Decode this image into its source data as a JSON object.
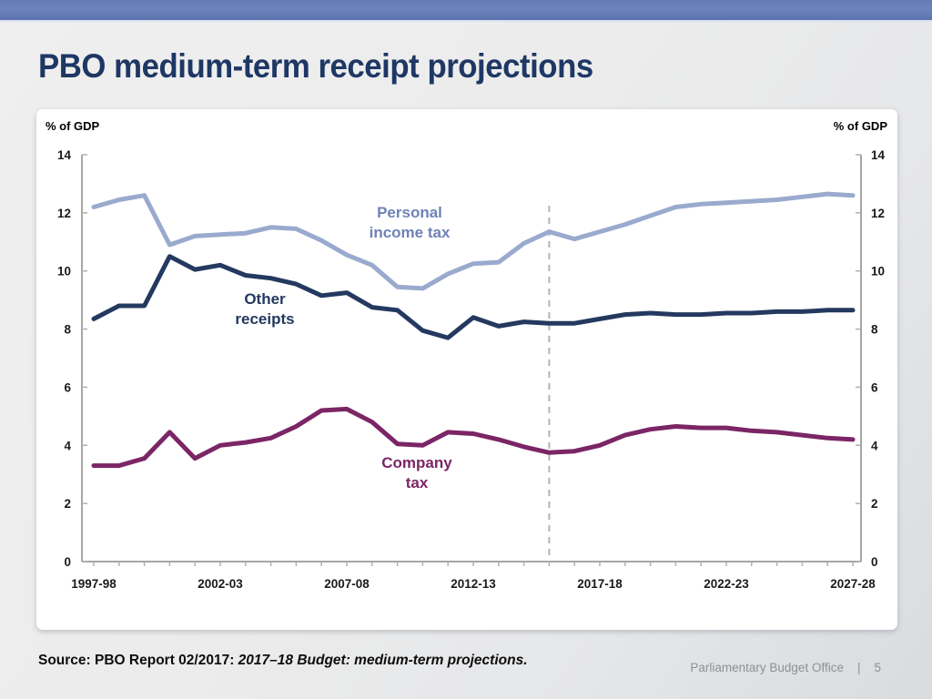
{
  "slide": {
    "title": "PBO medium-term receipt projections",
    "source": {
      "prefix": "Source: PBO Report 02/2017: ",
      "citation": "2017–18 Budget: medium-term projections."
    },
    "footer": {
      "organization": "Parliamentary Budget Office",
      "separator": "|",
      "page_number": "5"
    }
  },
  "chart_data": {
    "type": "line",
    "axis_label_left": "% of GDP",
    "axis_label_right": "% of GDP",
    "ylim": [
      0,
      14
    ],
    "y_ticks": [
      0,
      2,
      4,
      6,
      8,
      10,
      12,
      14
    ],
    "n_points": 31,
    "x_start_label": "1997-98",
    "x_end_label": "2027-28",
    "x_tick_labels": [
      {
        "index": 0,
        "label": "1997-98"
      },
      {
        "index": 5,
        "label": "2002-03"
      },
      {
        "index": 10,
        "label": "2007-08"
      },
      {
        "index": 15,
        "label": "2012-13"
      },
      {
        "index": 20,
        "label": "2017-18"
      },
      {
        "index": 25,
        "label": "2022-23"
      },
      {
        "index": 30,
        "label": "2027-28"
      }
    ],
    "projection_divider_index": 18,
    "grid": false,
    "legend": "inline-series-labels",
    "series": [
      {
        "name": "Personal income tax",
        "color": "#9aaace",
        "label_color": "#6f82b6",
        "values": [
          12.2,
          12.45,
          12.6,
          10.9,
          11.2,
          11.25,
          11.3,
          11.5,
          11.45,
          11.05,
          10.55,
          10.2,
          9.45,
          9.4,
          9.9,
          10.25,
          10.3,
          10.95,
          11.35,
          11.1,
          11.35,
          11.6,
          11.9,
          12.2,
          12.3,
          12.35,
          12.4,
          12.45,
          12.55,
          12.65,
          12.6
        ]
      },
      {
        "name": "Other receipts",
        "color": "#24395f",
        "label_color": "#24395f",
        "values": [
          8.35,
          8.8,
          8.8,
          10.5,
          10.05,
          10.2,
          9.85,
          9.75,
          9.55,
          9.15,
          9.25,
          8.75,
          8.65,
          7.95,
          7.7,
          8.4,
          8.1,
          8.25,
          8.2,
          8.2,
          8.35,
          8.5,
          8.55,
          8.5,
          8.5,
          8.55,
          8.55,
          8.6,
          8.6,
          8.65,
          8.65
        ]
      },
      {
        "name": "Company tax",
        "color": "#7b2566",
        "label_color": "#7b2566",
        "values": [
          3.3,
          3.3,
          3.55,
          4.45,
          3.55,
          4.0,
          4.1,
          4.25,
          4.65,
          5.2,
          5.25,
          4.8,
          4.05,
          4.0,
          4.45,
          4.4,
          4.2,
          3.95,
          3.75,
          3.8,
          4.0,
          4.35,
          4.55,
          4.65,
          4.6,
          4.6,
          4.5,
          4.45,
          4.35,
          4.25,
          4.2
        ]
      }
    ]
  },
  "colors": {
    "banner": "#6079b4",
    "title": "#1e3765",
    "axis": "#a6a6a6",
    "divider": "#b4b4b4",
    "footer_text": "#8f9091"
  }
}
